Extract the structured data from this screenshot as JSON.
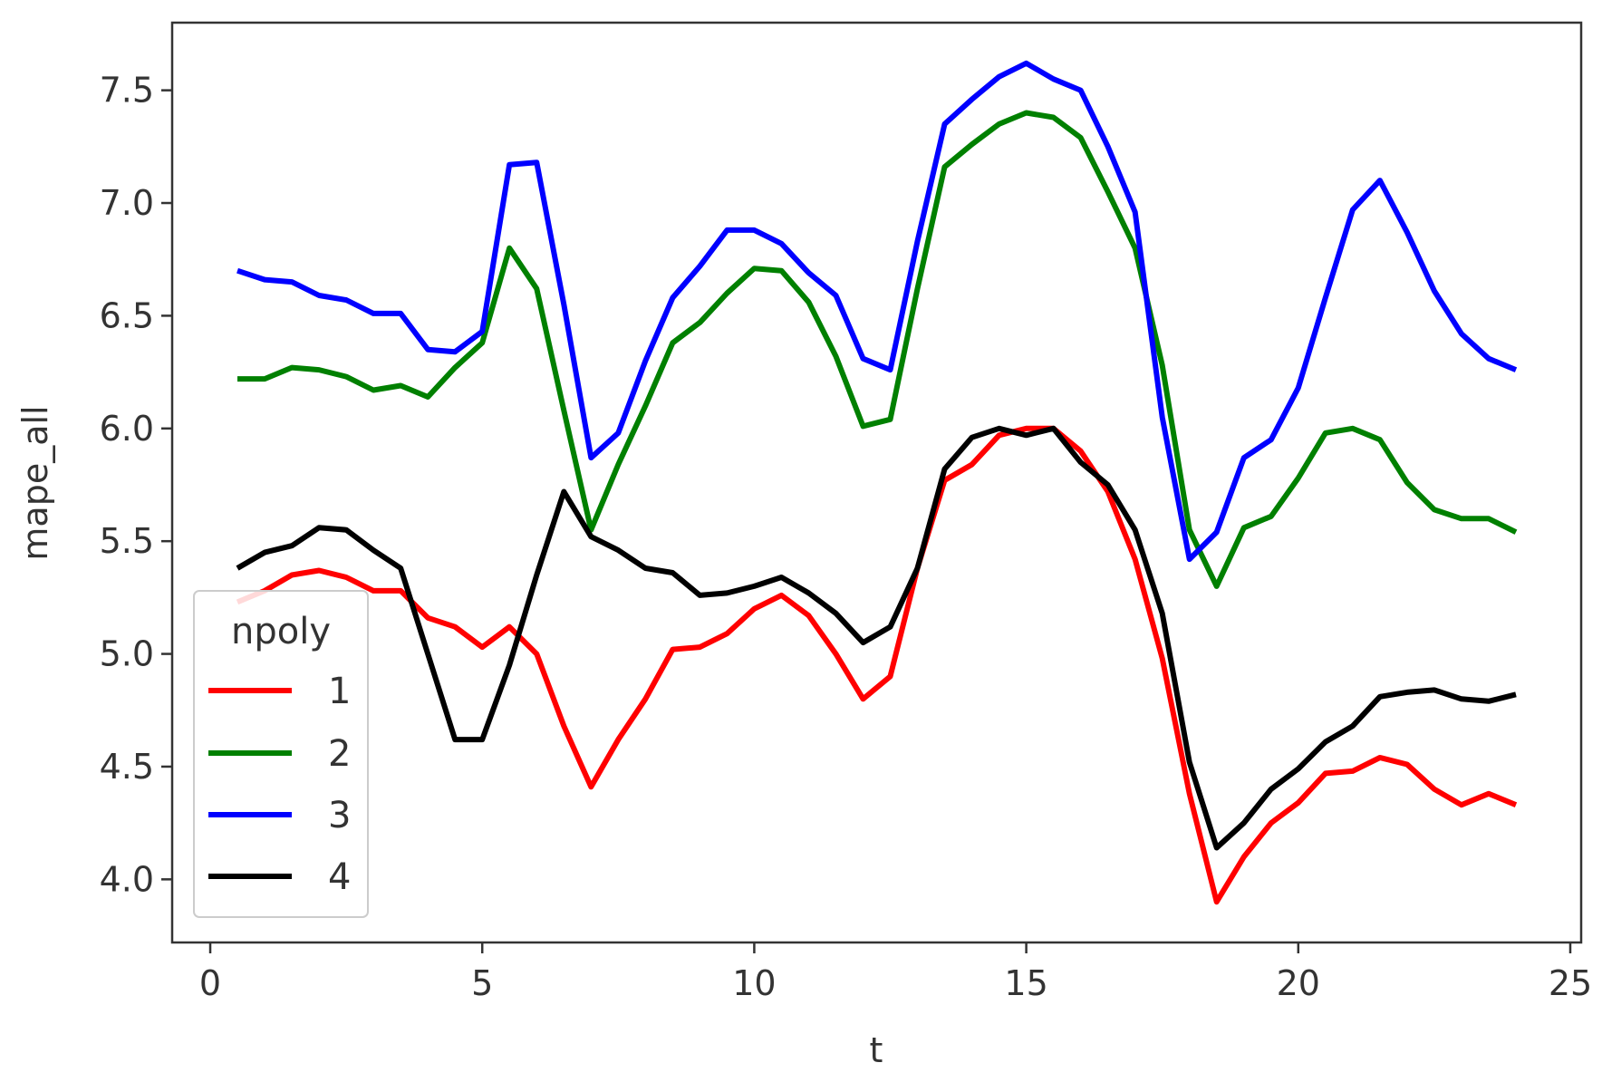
{
  "chart_data": {
    "type": "line",
    "xlabel": "t",
    "ylabel": "mape_all",
    "xlim": [
      -0.7,
      25.2
    ],
    "ylim": [
      3.72,
      7.8
    ],
    "xticks": [
      "0",
      "5",
      "10",
      "15",
      "20",
      "25"
    ],
    "yticks": [
      "4.0",
      "4.5",
      "5.0",
      "5.5",
      "6.0",
      "6.5",
      "7.0",
      "7.5"
    ],
    "grid": false,
    "legend": {
      "title": "npoly",
      "position": "lower-left"
    },
    "x": [
      0.5,
      1,
      1.5,
      2,
      2.5,
      3,
      3.5,
      4,
      4.5,
      5,
      5.5,
      6,
      6.5,
      7,
      7.5,
      8,
      8.5,
      9,
      9.5,
      10,
      10.5,
      11,
      11.5,
      12,
      12.5,
      13,
      13.5,
      14,
      14.5,
      15,
      15.5,
      16,
      16.5,
      17,
      17.5,
      18,
      18.5,
      19,
      19.5,
      20,
      20.5,
      21,
      21.5,
      22,
      22.5,
      23,
      23.5,
      24
    ],
    "series": [
      {
        "name": "1",
        "color": "#ff0000",
        "values": [
          5.23,
          5.28,
          5.35,
          5.37,
          5.34,
          5.28,
          5.28,
          5.16,
          5.12,
          5.03,
          5.12,
          5.0,
          4.68,
          4.41,
          4.62,
          4.8,
          5.02,
          5.03,
          5.09,
          5.2,
          5.26,
          5.17,
          5.0,
          4.8,
          4.9,
          5.38,
          5.77,
          5.84,
          5.97,
          6.0,
          6.0,
          5.9,
          5.72,
          5.42,
          4.98,
          4.38,
          3.9,
          4.1,
          4.25,
          4.34,
          4.47,
          4.48,
          4.54,
          4.51,
          4.4,
          4.33,
          4.38,
          4.33
        ]
      },
      {
        "name": "2",
        "color": "#008000",
        "values": [
          6.22,
          6.22,
          6.27,
          6.26,
          6.23,
          6.17,
          6.19,
          6.14,
          6.27,
          6.38,
          6.8,
          6.62,
          6.08,
          5.55,
          5.84,
          6.1,
          6.38,
          6.47,
          6.6,
          6.71,
          6.7,
          6.56,
          6.32,
          6.01,
          6.04,
          6.62,
          7.16,
          7.26,
          7.35,
          7.4,
          7.38,
          7.29,
          7.05,
          6.8,
          6.28,
          5.55,
          5.3,
          5.56,
          5.61,
          5.78,
          5.98,
          6.0,
          5.95,
          5.76,
          5.64,
          5.6,
          5.6,
          5.54
        ]
      },
      {
        "name": "3",
        "color": "#0000ff",
        "values": [
          6.7,
          6.66,
          6.65,
          6.59,
          6.57,
          6.51,
          6.51,
          6.35,
          6.34,
          6.43,
          7.17,
          7.18,
          6.55,
          5.87,
          5.98,
          6.3,
          6.58,
          6.72,
          6.88,
          6.88,
          6.82,
          6.69,
          6.59,
          6.31,
          6.26,
          6.83,
          7.35,
          7.46,
          7.56,
          7.62,
          7.55,
          7.5,
          7.25,
          6.96,
          6.05,
          5.42,
          5.54,
          5.87,
          5.95,
          6.18,
          6.58,
          6.97,
          7.1,
          6.87,
          6.61,
          6.42,
          6.31,
          6.26
        ]
      },
      {
        "name": "4",
        "color": "#000000",
        "values": [
          5.38,
          5.45,
          5.48,
          5.56,
          5.55,
          5.46,
          5.38,
          5.0,
          4.62,
          4.62,
          4.95,
          5.35,
          5.72,
          5.52,
          5.46,
          5.38,
          5.36,
          5.26,
          5.27,
          5.3,
          5.34,
          5.27,
          5.18,
          5.05,
          5.12,
          5.38,
          5.82,
          5.96,
          6.0,
          5.97,
          6.0,
          5.85,
          5.75,
          5.55,
          5.18,
          4.52,
          4.14,
          4.25,
          4.4,
          4.49,
          4.61,
          4.68,
          4.81,
          4.83,
          4.84,
          4.8,
          4.79,
          4.82
        ]
      }
    ]
  }
}
